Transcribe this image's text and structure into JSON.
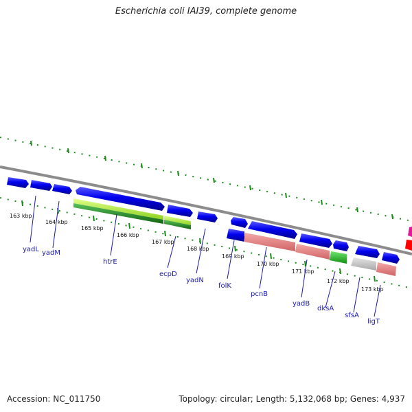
{
  "title": "Escherichia coli IAI39, complete genome",
  "footer": {
    "accession": "Accession: NC_011750",
    "topology": "Topology: circular; Length: 5,132,068 bp; Genes: 4,937"
  },
  "colors": {
    "backbone": "#8c8c8c",
    "cds": "#0000ee",
    "ticks": "#1a8a1a",
    "label": "#1a1aa8",
    "pink": "#f08c8c",
    "lightgreen": "#b4f03c",
    "darkgreen": "#2aa02a",
    "gray": "#c8c8c8",
    "magenta": "#e0189a",
    "red": "#ff0000"
  },
  "ticks": [
    "163 kbp",
    "164 kbp",
    "165 kbp",
    "166 kbp",
    "167 kbp",
    "168 kbp",
    "169 kbp",
    "170 kbp",
    "171 kbp",
    "172 kbp",
    "173 kbp"
  ],
  "genes": [
    "yadL",
    "yadM",
    "htrE",
    "ecpD",
    "yadN",
    "folK",
    "pcnB",
    "yadB",
    "dksA",
    "sfsA",
    "ligT"
  ]
}
